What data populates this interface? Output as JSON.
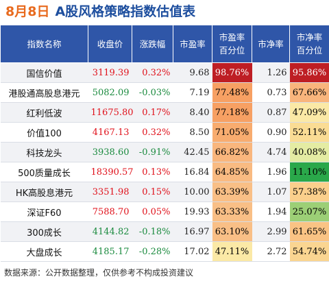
{
  "title": {
    "date": "8月8日",
    "name": "A股风格策略指数估值表"
  },
  "headers": {
    "name": "指数名称",
    "price": "收盘价",
    "change": "涨跌幅",
    "pe": "市盈率",
    "pe_pct_1": "市盈率",
    "pe_pct_2": "百分位",
    "pb": "市净率",
    "pb_pct_1": "市净率",
    "pb_pct_2": "百分位"
  },
  "rows": [
    {
      "name": "国信价值",
      "price": "3119.39",
      "change": "0.32%",
      "dir": "up",
      "pe": "9.68",
      "pe_pct": "98.76%",
      "pe_pct_color": "#be1e24",
      "pe_pct_text": "#ffffff",
      "pb": "1.26",
      "pb_pct": "95.86%",
      "pb_pct_color": "#be1e24",
      "pb_pct_text": "#ffffff"
    },
    {
      "name": "港股通高股息港元",
      "price": "5082.09",
      "change": "-0.03%",
      "dir": "down",
      "pe": "7.19",
      "pe_pct": "77.48%",
      "pe_pct_color": "#f7a063",
      "pe_pct_text": "#000000",
      "pb": "0.73",
      "pb_pct": "67.66%",
      "pb_pct_color": "#f9b57c",
      "pb_pct_text": "#000000"
    },
    {
      "name": "红利低波",
      "price": "11675.80",
      "change": "0.17%",
      "dir": "up",
      "pe": "8.40",
      "pe_pct": "77.18%",
      "pe_pct_color": "#f7a063",
      "pe_pct_text": "#000000",
      "pb": "0.87",
      "pb_pct": "47.09%",
      "pb_pct_color": "#fbe9a6",
      "pb_pct_text": "#000000"
    },
    {
      "name": "价值100",
      "price": "4167.13",
      "change": "0.32%",
      "dir": "up",
      "pe": "8.50",
      "pe_pct": "71.05%",
      "pe_pct_color": "#f8ac6f",
      "pe_pct_text": "#000000",
      "pb": "0.90",
      "pb_pct": "52.11%",
      "pb_pct_color": "#fadc94",
      "pb_pct_text": "#000000"
    },
    {
      "name": "科技龙头",
      "price": "3938.60",
      "change": "-0.91%",
      "dir": "down",
      "pe": "42.45",
      "pe_pct": "66.82%",
      "pe_pct_color": "#f9b67d",
      "pe_pct_text": "#000000",
      "pb": "4.74",
      "pb_pct": "40.08%",
      "pb_pct_color": "#e4eca3",
      "pb_pct_text": "#000000"
    },
    {
      "name": "500质量成长",
      "price": "18390.57",
      "change": "0.13%",
      "dir": "up",
      "pe": "16.84",
      "pe_pct": "64.85%",
      "pe_pct_color": "#f9bb82",
      "pe_pct_text": "#000000",
      "pb": "1.96",
      "pb_pct": "11.10%",
      "pb_pct_color": "#2aa84a",
      "pb_pct_text": "#000000"
    },
    {
      "name": "HK高股息港元",
      "price": "3351.98",
      "change": "0.15%",
      "dir": "up",
      "pe": "10.00",
      "pe_pct": "63.39%",
      "pe_pct_color": "#f9bf86",
      "pe_pct_text": "#000000",
      "pb": "1.07",
      "pb_pct": "57.38%",
      "pb_pct_color": "#fbcf8c",
      "pb_pct_text": "#000000"
    },
    {
      "name": "深证F60",
      "price": "7588.70",
      "change": "0.05%",
      "dir": "up",
      "pe": "19.93",
      "pe_pct": "63.33%",
      "pe_pct_color": "#f9bf86",
      "pe_pct_text": "#000000",
      "pb": "1.94",
      "pb_pct": "25.07%",
      "pb_pct_color": "#9ccf76",
      "pb_pct_text": "#000000"
    },
    {
      "name": "300成长",
      "price": "4144.82",
      "change": "-0.18%",
      "dir": "down",
      "pe": "16.97",
      "pe_pct": "63.10%",
      "pe_pct_color": "#f9bf86",
      "pe_pct_text": "#000000",
      "pb": "2.99",
      "pb_pct": "61.65%",
      "pb_pct_color": "#fac384",
      "pb_pct_text": "#000000"
    },
    {
      "name": "大盘成长",
      "price": "4185.17",
      "change": "-0.28%",
      "dir": "down",
      "pe": "17.02",
      "pe_pct": "47.11%",
      "pe_pct_color": "#fbe9a6",
      "pe_pct_text": "#000000",
      "pb": "2.72",
      "pb_pct": "54.74%",
      "pb_pct_color": "#fad591",
      "pb_pct_text": "#000000"
    }
  ],
  "footer": "数据来源：公开数据整理，仅供参考不构成投资建议",
  "colors": {
    "header_bg": "#2f56a8",
    "up": "#e0101a",
    "down": "#1a8a3e",
    "date": "#e86a1e",
    "title": "#1d4e9e"
  }
}
